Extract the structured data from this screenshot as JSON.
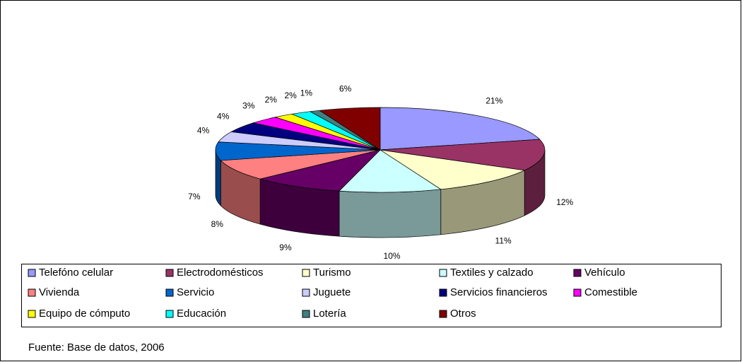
{
  "chart_data": {
    "type": "pie",
    "categories": [
      "Telefóno celular",
      "Electrodomésticos",
      "Turismo",
      "Textiles y calzado",
      "Vehículo",
      "Vivienda",
      "Servicio",
      "Juguete",
      "Servicios financieros",
      "Comestible",
      "Equipo de cómputo",
      "Educación",
      "Lotería",
      "Otros"
    ],
    "values": [
      21,
      12,
      11,
      10,
      9,
      8,
      7,
      4,
      4,
      3,
      2,
      2,
      1,
      6
    ],
    "value_labels": [
      "21%",
      "12%",
      "11%",
      "10%",
      "9%",
      "8%",
      "7%",
      "4%",
      "4%",
      "3%",
      "2%",
      "2%",
      "1%",
      "6%"
    ],
    "colors": [
      "#9999ff",
      "#993366",
      "#ffffcc",
      "#ccffff",
      "#660066",
      "#ff8080",
      "#0066cc",
      "#ccccff",
      "#000080",
      "#ff00ff",
      "#ffff00",
      "#00ffff",
      "#408080",
      "#800000"
    ],
    "source": "Fuente: Base de datos, 2006"
  }
}
